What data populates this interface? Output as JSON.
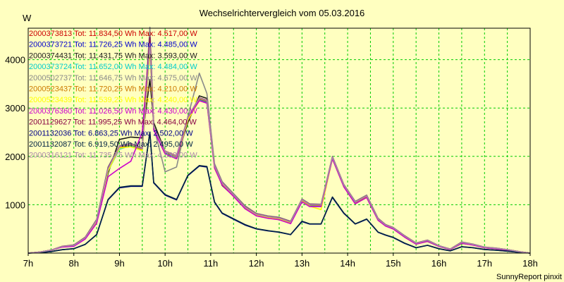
{
  "chart_data": {
    "type": "line",
    "title": "Wechselrichtervergleich vom 05.03.2016",
    "ylabel": "W",
    "footer": "SunnyReport pinxit",
    "ylim": [
      0,
      4650
    ],
    "xlim": [
      7,
      18
    ],
    "yticks": [
      1000,
      2000,
      3000,
      4000
    ],
    "xtick_labels": [
      "7h",
      "8h",
      "9h",
      "10h",
      "11h",
      "12h",
      "13h",
      "14h",
      "15h",
      "16h",
      "17h",
      "18h"
    ],
    "x": [
      7,
      7.25,
      7.5,
      7.75,
      8,
      8.25,
      8.5,
      8.75,
      9,
      9.25,
      9.5,
      9.667,
      9.75,
      10,
      10.25,
      10.5,
      10.75,
      10.917,
      11.083,
      11.25,
      11.5,
      11.75,
      12,
      12.25,
      12.5,
      12.75,
      13,
      13.167,
      13.417,
      13.667,
      13.917,
      14.167,
      14.417,
      14.667,
      14.833,
      15,
      15.25,
      15.5,
      15.75,
      16,
      16.25,
      16.5,
      16.75,
      17,
      17.25,
      17.5,
      17.75,
      18
    ],
    "series": [
      {
        "name": "2000373813",
        "tot": "11.834,50",
        "max": "4.517,00",
        "color": "#cc0000",
        "values": [
          0,
          20,
          60,
          140,
          160,
          320,
          680,
          1750,
          2200,
          2250,
          2150,
          4520,
          2600,
          2100,
          2000,
          2800,
          3200,
          3150,
          1800,
          1450,
          1200,
          950,
          800,
          750,
          720,
          640,
          1100,
          1000,
          990,
          1980,
          1400,
          1050,
          1180,
          700,
          580,
          520,
          350,
          200,
          260,
          150,
          80,
          220,
          180,
          120,
          100,
          70,
          30,
          0
        ]
      },
      {
        "name": "2000373721",
        "tot": "11.726,25",
        "max": "4.485,00",
        "color": "#0000cc",
        "values": [
          0,
          20,
          60,
          130,
          150,
          310,
          660,
          1720,
          2180,
          2230,
          2130,
          4480,
          2580,
          2080,
          1980,
          2780,
          3180,
          3130,
          1790,
          1440,
          1190,
          940,
          790,
          740,
          710,
          630,
          1090,
          990,
          980,
          1970,
          1390,
          1040,
          1170,
          690,
          570,
          510,
          340,
          190,
          250,
          140,
          75,
          210,
          170,
          115,
          95,
          65,
          28,
          0
        ]
      },
      {
        "name": "2000374431",
        "tot": "11.431,75",
        "max": "3.593,00",
        "color": "#1a1a1a",
        "values": [
          0,
          20,
          60,
          130,
          150,
          300,
          650,
          1650,
          2350,
          2400,
          2380,
          3590,
          2700,
          2100,
          1950,
          2700,
          3250,
          3200,
          1800,
          1400,
          1180,
          920,
          780,
          740,
          700,
          620,
          1100,
          1000,
          1000,
          1950,
          1380,
          1020,
          1150,
          680,
          560,
          500,
          330,
          190,
          240,
          140,
          75,
          200,
          170,
          110,
          90,
          60,
          25,
          0
        ]
      },
      {
        "name": "2000373724",
        "tot": "11.652,00",
        "max": "4.484,00",
        "color": "#00cccc",
        "values": [
          0,
          20,
          60,
          130,
          150,
          310,
          660,
          1700,
          2150,
          2220,
          2120,
          4480,
          2560,
          2060,
          1970,
          2760,
          3160,
          3110,
          1780,
          1420,
          1180,
          930,
          780,
          730,
          700,
          620,
          1080,
          980,
          970,
          1960,
          1380,
          1030,
          1160,
          690,
          565,
          505,
          335,
          190,
          250,
          140,
          75,
          210,
          170,
          112,
          92,
          62,
          27,
          0
        ]
      },
      {
        "name": "2000502737",
        "tot": "11.646,75",
        "max": "4.675,00",
        "color": "#8a8a8a",
        "values": [
          0,
          20,
          60,
          140,
          170,
          330,
          700,
          1780,
          2220,
          2270,
          2170,
          4670,
          2620,
          1680,
          1780,
          2820,
          3720,
          3300,
          1850,
          1480,
          1230,
          980,
          820,
          770,
          740,
          660,
          1120,
          1020,
          1010,
          2000,
          1420,
          1070,
          1200,
          720,
          590,
          530,
          360,
          210,
          270,
          155,
          85,
          230,
          185,
          125,
          105,
          72,
          32,
          0
        ]
      },
      {
        "name": "2000523437",
        "tot": "11.720,25",
        "max": "4.210,00",
        "color": "#cc7a00",
        "values": [
          0,
          20,
          60,
          135,
          155,
          315,
          670,
          1730,
          2190,
          2240,
          2140,
          4210,
          2590,
          2090,
          1990,
          2790,
          3190,
          3140,
          1790,
          1440,
          1190,
          945,
          795,
          745,
          715,
          635,
          1095,
          995,
          985,
          1975,
          1395,
          1045,
          1175,
          695,
          575,
          515,
          345,
          195,
          255,
          145,
          78,
          215,
          175,
          118,
          98,
          68,
          29,
          0
        ]
      },
      {
        "name": "2000523439",
        "tot": "11.539,25",
        "max": "4.240,00",
        "color": "#ffff00",
        "values": [
          0,
          20,
          60,
          130,
          150,
          305,
          655,
          1700,
          2170,
          2200,
          2120,
          4240,
          2570,
          2050,
          1950,
          2750,
          3150,
          3100,
          1750,
          1420,
          1170,
          925,
          780,
          730,
          700,
          615,
          1070,
          970,
          900,
          1950,
          1370,
          1020,
          1150,
          680,
          560,
          500,
          330,
          185,
          245,
          138,
          72,
          205,
          165,
          110,
          90,
          60,
          26,
          0
        ]
      },
      {
        "name": "2000376360",
        "tot": "11.026,50",
        "max": "4.430,00",
        "color": "#cc00cc",
        "values": [
          0,
          20,
          60,
          125,
          140,
          290,
          620,
          1580,
          1750,
          1900,
          2500,
          4430,
          2550,
          2050,
          1950,
          2800,
          3150,
          3100,
          1760,
          1410,
          1170,
          920,
          770,
          720,
          690,
          610,
          1060,
          960,
          960,
          1950,
          1370,
          1020,
          1150,
          680,
          560,
          500,
          330,
          185,
          245,
          138,
          72,
          205,
          165,
          110,
          90,
          60,
          26,
          0
        ]
      },
      {
        "name": "2001129627",
        "tot": "11.995,25",
        "max": "4.464,00",
        "color": "#880044",
        "values": [
          0,
          22,
          62,
          142,
          162,
          325,
          685,
          1760,
          2210,
          2260,
          2160,
          4460,
          2610,
          2110,
          2010,
          2810,
          3210,
          3160,
          1810,
          1460,
          1210,
          960,
          810,
          760,
          730,
          650,
          1110,
          1010,
          1000,
          1990,
          1410,
          1060,
          1190,
          710,
          585,
          525,
          355,
          205,
          265,
          152,
          82,
          225,
          182,
          122,
          102,
          72,
          32,
          0
        ]
      },
      {
        "name": "2001132036",
        "tot": "6.863,25",
        "max": "2.502,00",
        "color": "#000088",
        "values": [
          0,
          10,
          30,
          70,
          90,
          180,
          380,
          1100,
          1350,
          1380,
          1380,
          2500,
          1450,
          1200,
          1100,
          1600,
          1800,
          1780,
          1050,
          820,
          700,
          580,
          500,
          460,
          430,
          380,
          650,
          600,
          600,
          1150,
          820,
          600,
          700,
          430,
          370,
          320,
          200,
          110,
          160,
          90,
          45,
          130,
          110,
          75,
          60,
          40,
          18,
          0
        ]
      },
      {
        "name": "2001132087",
        "tot": "6.919,50",
        "max": "2.495,00",
        "color": "#002244",
        "values": [
          0,
          10,
          32,
          72,
          92,
          182,
          385,
          1110,
          1360,
          1390,
          1390,
          2495,
          1460,
          1210,
          1110,
          1610,
          1810,
          1790,
          1060,
          830,
          710,
          590,
          505,
          465,
          435,
          385,
          660,
          605,
          605,
          1160,
          830,
          605,
          705,
          435,
          375,
          325,
          205,
          112,
          162,
          92,
          46,
          132,
          112,
          76,
          61,
          41,
          19,
          0
        ]
      },
      {
        "name": "2000316121",
        "tot": "11.735,75",
        "max": "4.332,00",
        "color": "#aa88aa",
        "values": [
          0,
          21,
          61,
          138,
          158,
          318,
          678,
          1745,
          2205,
          2255,
          2155,
          4330,
          2605,
          2105,
          2005,
          2805,
          3205,
          3155,
          1805,
          1455,
          1205,
          955,
          805,
          755,
          725,
          645,
          1105,
          1005,
          995,
          1985,
          1405,
          1055,
          1185,
          705,
          582,
          522,
          352,
          202,
          262,
          150,
          80,
          222,
          180,
          121,
          101,
          71,
          31,
          0
        ]
      }
    ]
  }
}
